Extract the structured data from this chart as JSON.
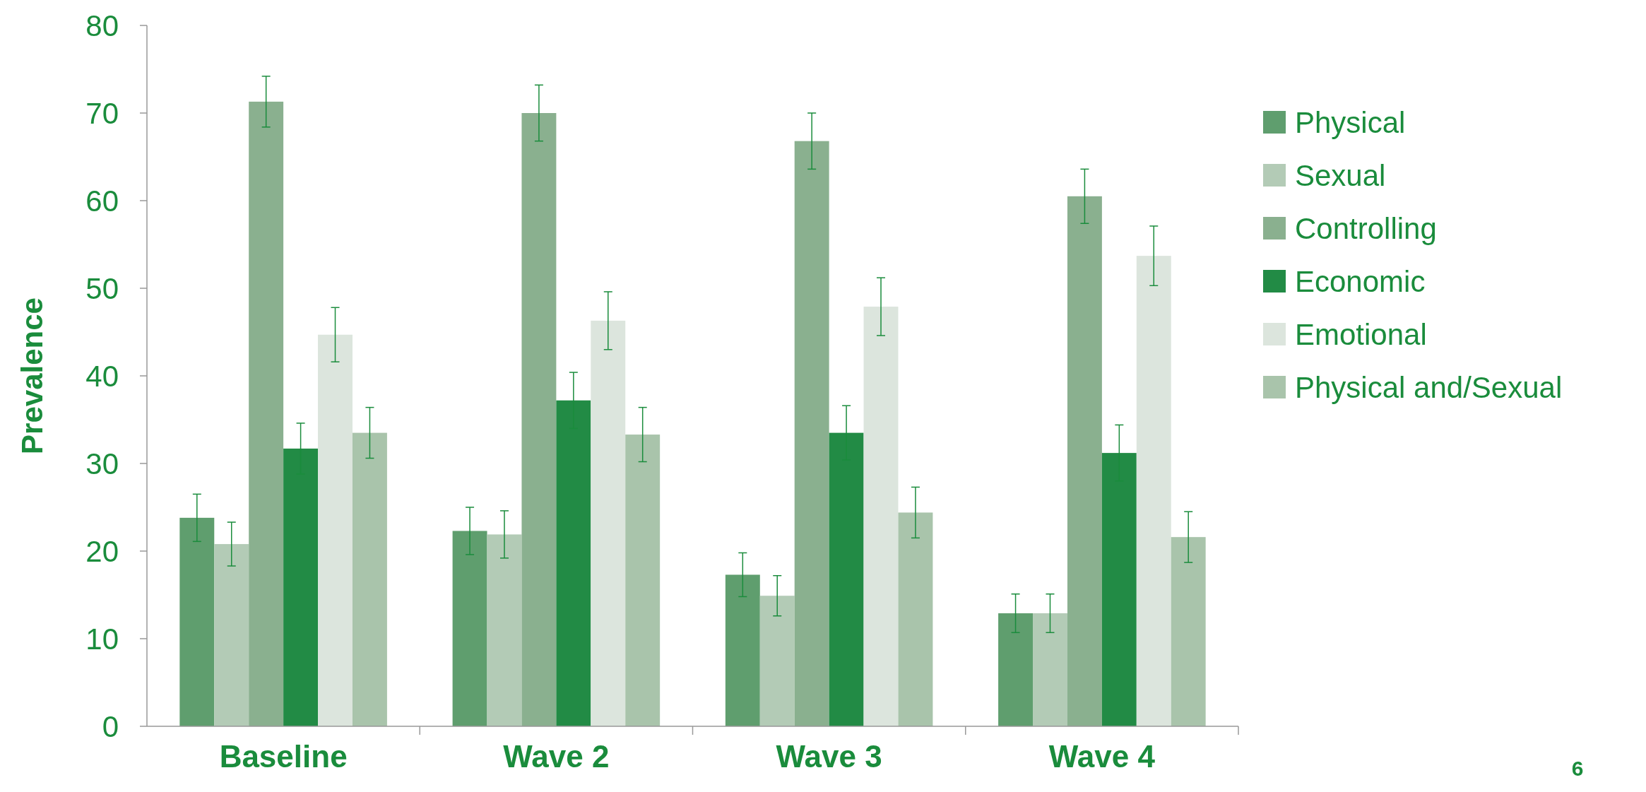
{
  "chart_data": {
    "type": "bar",
    "ylabel": "Prevalence",
    "categories": [
      "Baseline",
      "Wave 2",
      "Wave 3",
      "Wave 4"
    ],
    "series": [
      {
        "name": "Physical",
        "color": "#5f9e6e",
        "values": [
          23.8,
          22.3,
          17.3,
          12.9
        ],
        "errors": [
          2.7,
          2.7,
          2.5,
          2.2
        ]
      },
      {
        "name": "Sexual",
        "color": "#b3cbb6",
        "values": [
          20.8,
          21.9,
          14.9,
          12.9
        ],
        "errors": [
          2.5,
          2.7,
          2.3,
          2.2
        ]
      },
      {
        "name": "Controlling",
        "color": "#8ab08f",
        "values": [
          71.3,
          70.0,
          66.8,
          60.5
        ],
        "errors": [
          2.9,
          3.2,
          3.2,
          3.1
        ]
      },
      {
        "name": "Economic",
        "color": "#228b45",
        "values": [
          31.7,
          37.2,
          33.5,
          31.2
        ],
        "errors": [
          2.9,
          3.2,
          3.1,
          3.2
        ]
      },
      {
        "name": "Emotional",
        "color": "#dce5dd",
        "values": [
          44.7,
          46.3,
          47.9,
          53.7
        ],
        "errors": [
          3.1,
          3.3,
          3.3,
          3.4
        ]
      },
      {
        "name": "Physical and/Sexual",
        "color": "#a9c4ab",
        "values": [
          33.5,
          33.3,
          24.4,
          21.6
        ],
        "errors": [
          2.9,
          3.1,
          2.9,
          2.9
        ]
      }
    ],
    "ylim": [
      0,
      80
    ],
    "yticks": [
      0,
      10,
      20,
      30,
      40,
      50,
      60,
      70,
      80
    ],
    "grid": false,
    "legend": "right",
    "annotations": [
      "6"
    ]
  }
}
